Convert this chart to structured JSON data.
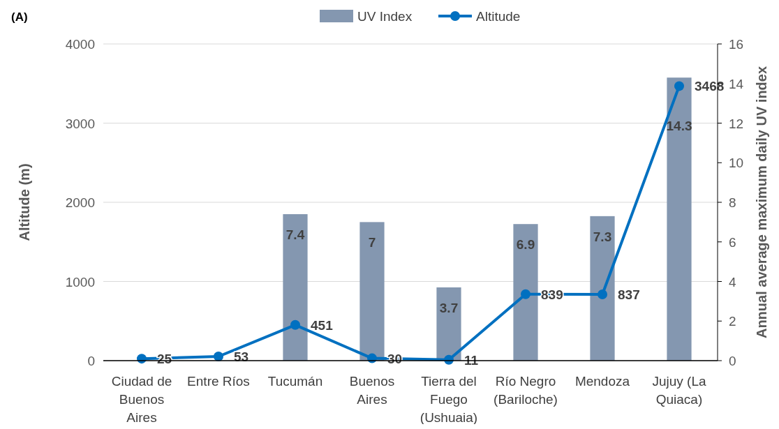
{
  "chart_data": {
    "type": "bar",
    "annotations": [
      "(A)"
    ],
    "ylabel": "Altitude (m)",
    "y2label": "Annual average maximum daily UV index",
    "categories": [
      "Ciudad de Buenos Aires",
      "Entre Ríos",
      "Tucumán",
      "Buenos Aires",
      "Tierra del Fuego (Ushuaia)",
      "Río Negro (Bariloche)",
      "Mendoza",
      "Jujuy (La Quiaca)"
    ],
    "series": [
      {
        "name": "UV Index",
        "type": "bar",
        "axis": "y2",
        "color": "#8497b0",
        "values": [
          null,
          null,
          7.4,
          7,
          3.7,
          6.9,
          7.3,
          14.3
        ]
      },
      {
        "name": "Altitude",
        "type": "line",
        "color": "#0070c0",
        "marker": "circle",
        "values": [
          25,
          53,
          451,
          30,
          11,
          839,
          837,
          3468
        ]
      }
    ],
    "ylim": [
      0,
      4000
    ],
    "yticks": [
      0,
      1000,
      2000,
      3000,
      4000
    ],
    "y2lim": [
      0,
      16
    ],
    "y2ticks": [
      0,
      2,
      4,
      6,
      8,
      10,
      12,
      14,
      16
    ],
    "grid": "y",
    "legend": "top",
    "data_labels": true
  }
}
